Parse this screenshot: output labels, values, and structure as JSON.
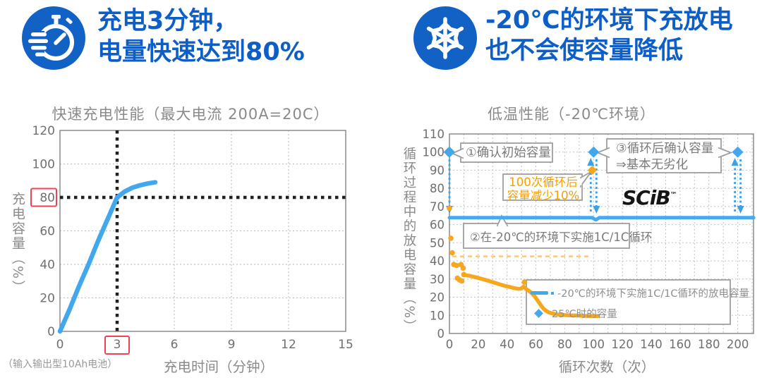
{
  "colors": {
    "header_blue": "#0E5EC8",
    "icon_blue": "#1262C6",
    "chart_blue": "#41A8EE",
    "orange": "#F7A71E",
    "orange_text": "#F5A000",
    "red_box": "#F04351",
    "gray_text": "#8a8a8a",
    "tick_gray": "#6f6f6f",
    "grid_gray": "#c2c2c2",
    "black_dots": "#202020"
  },
  "left": {
    "header": {
      "icon": "stopwatch-icon",
      "line1": "充电3分钟，",
      "line2": "电量快速达到80%"
    },
    "chart_title": "快速充电性能（最大电流 200A=20C）",
    "ylabel": "充电容量（%）",
    "xlabel": "充电时间（分钟）",
    "note": "（输入输出型10Ah电池）"
  },
  "right": {
    "header": {
      "icon": "snowflake-icon",
      "line1": "-20℃的环境下充放电",
      "line2": "也不会使容量降低"
    },
    "chart_title": "低温性能（-20℃环境）",
    "ylabel": "循环过程中的放电容量（%）",
    "xlabel": "循环次数（次）",
    "logo": "SCiB",
    "logo_tm": "™",
    "annotations": {
      "a1": "①确认初始容量",
      "a2": "②在-20℃的环境下实施1C/1C循环",
      "a3_line1": "③循环后确认容量",
      "a3_line2": "⇒基本无劣化",
      "orange_line1": "100次循环后",
      "orange_line2": "容量减少10%"
    },
    "legend": {
      "item1": "-20℃的环境下实施1C/1C循环的放电容量",
      "item2": "25℃时的容量"
    }
  },
  "chart_data": [
    {
      "type": "line",
      "title": "快速充电性能（最大电流 200A=20C）",
      "xlabel": "充电时间（分钟）",
      "ylabel": "充电容量（%）",
      "xlim": [
        0,
        15
      ],
      "ylim": [
        0,
        120
      ],
      "xticks": [
        0,
        3,
        6,
        9,
        12,
        15
      ],
      "yticks": [
        0,
        20,
        40,
        60,
        80,
        100,
        120
      ],
      "highlight": {
        "x": 3,
        "y": 80
      },
      "series": [
        {
          "id": "charge-curve",
          "color": "#41A8EE",
          "points": [
            [
              0,
              0
            ],
            [
              0.5,
              13
            ],
            [
              1,
              27
            ],
            [
              1.5,
              40
            ],
            [
              2,
              54
            ],
            [
              2.5,
              67
            ],
            [
              3,
              80
            ],
            [
              3.4,
              83.5
            ],
            [
              3.8,
              85.8
            ],
            [
              4.2,
              87.2
            ],
            [
              4.6,
              88.3
            ],
            [
              5,
              89
            ]
          ]
        }
      ]
    },
    {
      "type": "line",
      "title": "低温性能（-20℃环境）",
      "xlabel": "循环次数（次）",
      "ylabel": "循环过程中的放电容量（%）",
      "xlim": [
        0,
        211
      ],
      "ylim": [
        0,
        110
      ],
      "xticks": [
        0,
        20,
        40,
        60,
        80,
        100,
        120,
        140,
        160,
        180,
        200
      ],
      "yticks": [
        0,
        10,
        20,
        30,
        40,
        50,
        60,
        70,
        80,
        90,
        100,
        110
      ],
      "series": [
        {
          "id": "scib-minus20-discharge",
          "legend": "-20℃的环境下实施1C/1C循环的放电容量",
          "color": "#45ABEF",
          "style": "line",
          "points": [
            [
              0,
              63.8
            ],
            [
              99,
              63.8
            ],
            [
              101.5,
              62.6
            ],
            [
              104,
              63.8
            ],
            [
              211,
              63.8
            ]
          ]
        },
        {
          "id": "capacity-at-25C",
          "legend": "25℃时的容量",
          "color": "#41A8EE",
          "style": "diamond",
          "points": [
            [
              0,
              100
            ],
            [
              100,
              100
            ],
            [
              200,
              100
            ]
          ]
        },
        {
          "id": "orange-fade-curve",
          "color": "#F7A71E",
          "style": "line",
          "points": [
            [
              10,
              32.3
            ],
            [
              14,
              31.8
            ],
            [
              18,
              31
            ],
            [
              22,
              30.2
            ],
            [
              26,
              29.3
            ],
            [
              30,
              28.3
            ],
            [
              34,
              27.3
            ],
            [
              38,
              26.3
            ],
            [
              42,
              25.6
            ],
            [
              45,
              25
            ],
            [
              48,
              24.6
            ],
            [
              50,
              24.8
            ],
            [
              51.5,
              25.8
            ],
            [
              53,
              24.6
            ],
            [
              55,
              23.6
            ],
            [
              57,
              22.3
            ],
            [
              59,
              20.6
            ],
            [
              61,
              18.4
            ],
            [
              62.5,
              16.6
            ],
            [
              64,
              14.9
            ],
            [
              65.5,
              13.5
            ],
            [
              67,
              12.5
            ],
            [
              69,
              11.6
            ],
            [
              71,
              11.1
            ],
            [
              74,
              10.6
            ],
            [
              78,
              10.2
            ],
            [
              83,
              10
            ],
            [
              88,
              9.9
            ],
            [
              93,
              9.7
            ],
            [
              98,
              9.6
            ],
            [
              103,
              9.6
            ]
          ]
        },
        {
          "id": "orange-scatter",
          "color": "#F7A71E",
          "style": "scatter",
          "points": [
            [
              0,
              69
            ],
            [
              1,
              52.5
            ],
            [
              2,
              44.5
            ],
            [
              3,
              38
            ],
            [
              5,
              37.5
            ],
            [
              5.5,
              30.5
            ],
            [
              7,
              29.5
            ],
            [
              8,
              38
            ],
            [
              8.5,
              29
            ],
            [
              9.5,
              36
            ],
            [
              10,
              32.5
            ],
            [
              52,
              28.3
            ]
          ]
        },
        {
          "id": "orange-diamonds",
          "color": "#F7A71E",
          "style": "diamond",
          "points": [
            [
              0,
              100
            ],
            [
              100,
              90
            ]
          ]
        }
      ],
      "orange_dash_line": {
        "y": 42.5,
        "x1": 2,
        "x2": 97
      },
      "arrows": [
        {
          "x": 0,
          "dir": "down"
        },
        {
          "x": 100,
          "dir": "both"
        },
        {
          "x": 200,
          "dir": "both"
        }
      ]
    }
  ]
}
